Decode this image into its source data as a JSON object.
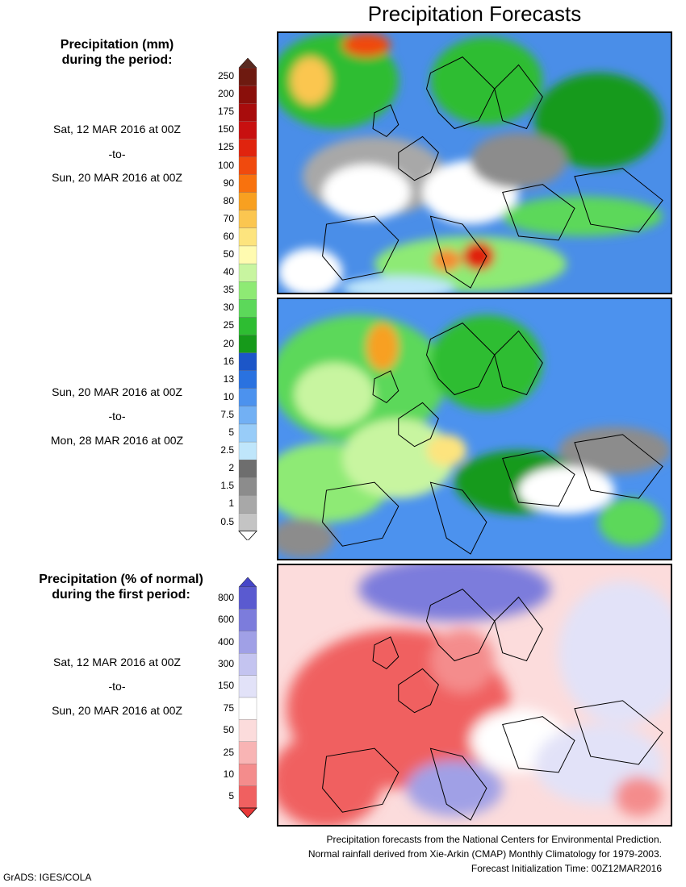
{
  "title": "Precipitation Forecasts",
  "legend_mm": {
    "title_line1": "Precipitation (mm)",
    "title_line2": "during the period:",
    "labels": [
      "250",
      "200",
      "175",
      "150",
      "125",
      "100",
      "90",
      "80",
      "70",
      "60",
      "50",
      "40",
      "35",
      "30",
      "25",
      "20",
      "16",
      "13",
      "10",
      "7.5",
      "5",
      "2.5",
      "2",
      "1.5",
      "1",
      "0.5"
    ],
    "colors": [
      "#6e1a10",
      "#8a0f0a",
      "#a80c0c",
      "#c81010",
      "#e0240e",
      "#f04a0e",
      "#f8720e",
      "#f8a020",
      "#fbc650",
      "#fde47e",
      "#fffbb0",
      "#c8f5a0",
      "#8eea74",
      "#5cd85a",
      "#2ebd32",
      "#169a1a",
      "#1c56c8",
      "#2a72e0",
      "#4c92ee",
      "#72b0f4",
      "#98ccf8",
      "#bfe6fb",
      "#6e6e6e",
      "#8c8c8c",
      "#a8a8a8",
      "#c4c4c4"
    ],
    "top_arrow_color": "#5a2a20",
    "bottom_arrow_color": "#ffffff"
  },
  "legend_pct": {
    "title_line1": "Precipitation (% of normal)",
    "title_line2": "during the first period:",
    "labels": [
      "800",
      "600",
      "400",
      "300",
      "150",
      "75",
      "50",
      "25",
      "10",
      "5"
    ],
    "colors": [
      "#5a5ad0",
      "#7c7cdc",
      "#a0a0e6",
      "#c4c4f0",
      "#e2e2f8",
      "#ffffff",
      "#fcdcdc",
      "#f8b4b4",
      "#f48c8c",
      "#f06060"
    ],
    "top_arrow_color": "#4646c8",
    "bottom_arrow_color": "#e83838"
  },
  "periods": [
    {
      "line1": "Sat, 12 MAR 2016 at 00Z",
      "line2": "-to-",
      "line3": "Sun, 20 MAR 2016 at 00Z"
    },
    {
      "line1": "Sun, 20 MAR 2016 at 00Z",
      "line2": "-to-",
      "line3": "Mon, 28 MAR 2016 at 00Z"
    },
    {
      "line1": "Sat, 12 MAR 2016 at 00Z",
      "line2": "-to-",
      "line3": "Sun, 20 MAR 2016 at 00Z"
    }
  ],
  "footer": {
    "line1": "Precipitation forecasts from the National Centers for Environmental Prediction.",
    "line2": "Normal rainfall derived from Xie-Arkin (CMAP) Monthly Climatology for 1979-2003.",
    "line3": "Forecast Initialization Time: 00Z12MAR2016"
  },
  "credit": "GrADS: IGES/COLA"
}
